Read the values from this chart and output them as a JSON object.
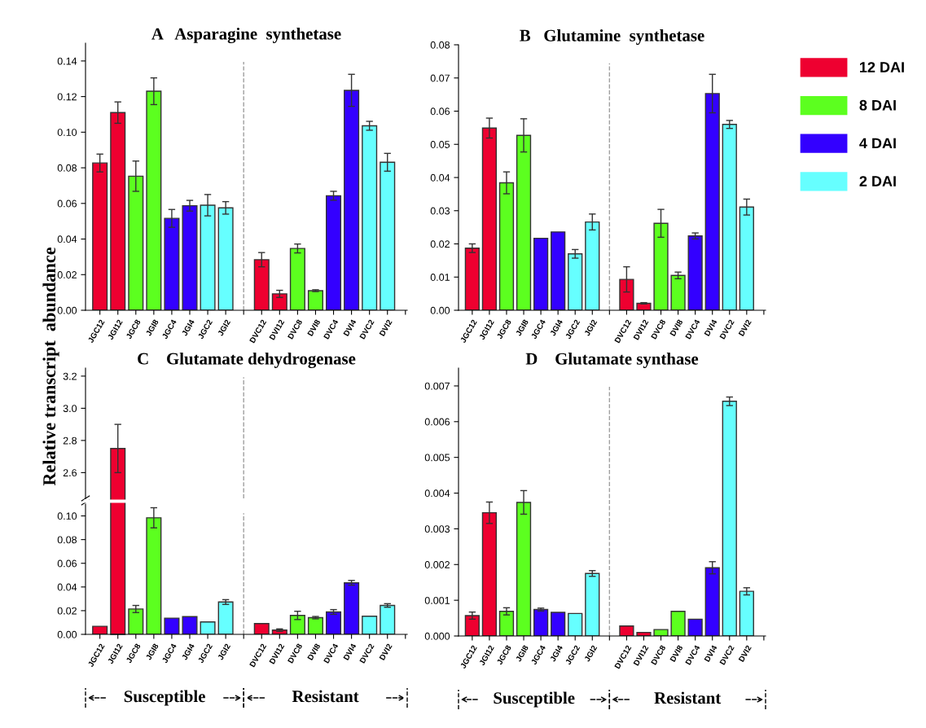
{
  "chart_data": [
    {
      "type": "bar",
      "title": "A   Asparagine  synthetase",
      "categories": [
        "JGC12",
        "JGI12",
        "JGC8",
        "JGI8",
        "JGC4",
        "JGI4",
        "JGC2",
        "JGI2",
        null,
        "DVC12",
        "DVI12",
        "DVC8",
        "DVI8",
        "DVC4",
        "DVI4",
        "DVC2",
        "DVI2"
      ],
      "series": [
        {
          "color": "#ee0030",
          "values": [
            0.0827,
            0.111,
            null,
            null,
            null,
            null,
            null,
            null,
            null,
            0.0284,
            0.0092,
            null,
            null,
            null,
            null,
            null,
            null
          ],
          "errors": [
            0.005,
            0.006,
            null,
            null,
            null,
            null,
            null,
            null,
            null,
            0.004,
            0.002,
            null,
            null,
            null,
            null,
            null,
            null
          ]
        },
        {
          "color": "#5cff1f",
          "values": [
            null,
            null,
            0.0753,
            0.123,
            null,
            null,
            null,
            null,
            null,
            null,
            null,
            0.0347,
            0.011,
            null,
            null,
            null,
            null
          ],
          "errors": [
            null,
            null,
            0.0085,
            0.0075,
            null,
            null,
            null,
            null,
            null,
            null,
            null,
            0.0025,
            0.0005,
            null,
            null,
            null,
            null
          ]
        },
        {
          "color": "#3300ff",
          "values": [
            null,
            null,
            null,
            null,
            0.0516,
            0.0587,
            null,
            null,
            null,
            null,
            null,
            null,
            null,
            0.0643,
            0.1235,
            null,
            null
          ],
          "errors": [
            null,
            null,
            null,
            null,
            0.005,
            0.003,
            null,
            null,
            null,
            null,
            null,
            null,
            null,
            0.0025,
            0.009,
            null,
            null
          ]
        },
        {
          "color": "#66ffff",
          "values": [
            null,
            null,
            null,
            null,
            null,
            null,
            0.059,
            0.0575,
            null,
            null,
            null,
            null,
            null,
            null,
            null,
            0.1036,
            0.0831
          ],
          "errors": [
            null,
            null,
            null,
            null,
            null,
            null,
            0.006,
            0.0035,
            null,
            null,
            null,
            null,
            null,
            null,
            null,
            0.0025,
            0.005
          ]
        }
      ],
      "ylim": [
        0,
        0.15
      ],
      "yticks": [
        {
          "value": 0,
          "label": "0.00"
        },
        0.02,
        0.04,
        0.06,
        0.08,
        {
          "value": 0.1,
          "label": "0.10"
        },
        0.12,
        0.14
      ]
    },
    {
      "type": "bar",
      "title": "B   Glutamine  synthetase",
      "legend": "right",
      "categories": [
        "JGC12",
        "JGI12",
        "JGC8",
        "JGI8",
        "JGC4",
        "JGI4",
        "JGC2",
        "JGI2",
        null,
        "DVC12",
        "DVI12",
        "DVC8",
        "DVI8",
        "DVC4",
        "DVI4",
        "DVC2",
        "DVI2"
      ],
      "series": [
        {
          "name": "12 DAI",
          "color": "#ee0030",
          "values": [
            0.0187,
            0.0549,
            null,
            null,
            null,
            null,
            null,
            null,
            null,
            0.0093,
            0.0021,
            null,
            null,
            null,
            null,
            null,
            null
          ],
          "errors": [
            0.0013,
            0.003,
            null,
            null,
            null,
            null,
            null,
            null,
            null,
            0.0038,
            0.0002,
            null,
            null,
            null,
            null,
            null,
            null
          ]
        },
        {
          "name": "8 DAI",
          "color": "#5cff1f",
          "values": [
            null,
            null,
            0.0384,
            0.0527,
            null,
            null,
            null,
            null,
            null,
            null,
            null,
            0.0262,
            0.0105,
            null,
            null,
            null,
            null
          ],
          "errors": [
            null,
            null,
            0.0033,
            0.005,
            null,
            null,
            null,
            null,
            null,
            null,
            null,
            0.0042,
            0.001,
            null,
            null,
            null,
            null
          ]
        },
        {
          "name": "4 DAI",
          "color": "#3300ff",
          "values": [
            null,
            null,
            null,
            null,
            0.0217,
            0.0236,
            null,
            null,
            null,
            null,
            null,
            null,
            null,
            0.0224,
            0.0653,
            null,
            null
          ],
          "errors": [
            null,
            null,
            null,
            null,
            null,
            null,
            null,
            null,
            null,
            null,
            null,
            null,
            null,
            0.0009,
            0.0058,
            null,
            null
          ]
        },
        {
          "name": "2 DAI",
          "color": "#66ffff",
          "values": [
            null,
            null,
            null,
            null,
            null,
            null,
            0.017,
            0.0266,
            null,
            null,
            null,
            null,
            null,
            null,
            null,
            0.056,
            0.0311
          ],
          "errors": [
            null,
            null,
            null,
            null,
            null,
            null,
            0.0013,
            0.0024,
            null,
            null,
            null,
            null,
            null,
            null,
            null,
            0.0012,
            0.0024
          ]
        }
      ],
      "ylim": [
        0,
        0.08
      ],
      "yticks": [
        {
          "value": 0,
          "label": "0.00"
        },
        0.01,
        0.02,
        0.03,
        0.04,
        0.05,
        0.06,
        0.07,
        0.08
      ]
    },
    {
      "type": "bar",
      "title": "C    Glutamate dehydrogenase",
      "tick_labels": "y",
      "series": [
        {
          "color": "#ee0030",
          "values": [
            null,
            2.75,
            null,
            null,
            null,
            null,
            null,
            null,
            null,
            null,
            null,
            null,
            null,
            null,
            null,
            null,
            null
          ],
          "errors": [
            null,
            0.15,
            null,
            null,
            null,
            null,
            null,
            null,
            null,
            null,
            null,
            null,
            null,
            null,
            null,
            null,
            null
          ]
        }
      ],
      "ylim": [
        2.44,
        3.25
      ],
      "yticks": [
        2.6,
        2.8,
        {
          "value": 3.0,
          "label": "3.0"
        },
        3.2
      ]
    },
    {
      "type": "bar",
      "ylabel": "Relative transcript  abundance",
      "categories": [
        "JGC12",
        "JGI12",
        "JGC8",
        "JGI8",
        "JGC4",
        "JGI4",
        "JGC2",
        "JGI2",
        null,
        "DVC12",
        "DVI12",
        "DVC8",
        "DVI8",
        "DVC4",
        "DVI4",
        "DVC2",
        "DVI2"
      ],
      "series": [
        {
          "color": "#ee0030",
          "values": [
            0.0068,
            null,
            null,
            null,
            null,
            null,
            null,
            null,
            null,
            0.0091,
            0.0036,
            null,
            null,
            null,
            null,
            null,
            null
          ],
          "errors": [
            null,
            null,
            null,
            null,
            null,
            null,
            null,
            null,
            null,
            null,
            0.001,
            null,
            null,
            null,
            null,
            null,
            null
          ]
        },
        {
          "color": "#5cff1f",
          "values": [
            null,
            null,
            0.0214,
            0.0984,
            null,
            null,
            null,
            null,
            null,
            null,
            null,
            0.016,
            0.0141,
            null,
            null,
            null,
            null
          ],
          "errors": [
            null,
            null,
            0.003,
            0.0085,
            null,
            null,
            null,
            null,
            null,
            null,
            null,
            0.0035,
            0.001,
            null,
            null,
            null,
            null
          ]
        },
        {
          "color": "#3300ff",
          "values": [
            null,
            null,
            null,
            null,
            0.0137,
            0.015,
            null,
            null,
            null,
            null,
            null,
            null,
            null,
            0.0189,
            0.0435,
            null,
            null
          ],
          "errors": [
            null,
            null,
            null,
            null,
            null,
            null,
            null,
            null,
            null,
            null,
            null,
            null,
            null,
            0.002,
            0.002,
            null,
            null
          ]
        },
        {
          "color": "#66ffff",
          "values": [
            null,
            null,
            null,
            null,
            null,
            null,
            0.0105,
            0.0273,
            null,
            null,
            null,
            null,
            null,
            null,
            null,
            0.0153,
            0.0244
          ],
          "errors": [
            null,
            null,
            null,
            null,
            null,
            null,
            null,
            0.002,
            null,
            null,
            null,
            null,
            null,
            null,
            null,
            null,
            0.0015
          ]
        }
      ],
      "ylim": [
        0,
        0.11
      ],
      "yticks": [
        {
          "value": 0,
          "label": "0.00"
        },
        0.02,
        0.04,
        0.06,
        0.08,
        {
          "value": 0.1,
          "label": "0.10"
        }
      ],
      "annotations": [
        "Susceptible",
        "Resistant"
      ]
    },
    {
      "type": "bar",
      "title": "D    Glutamate synthase",
      "categories": [
        "JGC12",
        "JGI12",
        "JGC8",
        "JGI8",
        "JGC4",
        "JGI4",
        "JGC2",
        "JGI2",
        null,
        "DVC12",
        "DVI12",
        "DVC8",
        "DVI8",
        "DVC4",
        "DVI4",
        "DVC2",
        "DVI2"
      ],
      "series": [
        {
          "color": "#ee0030",
          "values": [
            0.00057,
            0.00345,
            null,
            null,
            null,
            null,
            null,
            null,
            null,
            0.00028,
            0.0001,
            null,
            null,
            null,
            null,
            null,
            null
          ],
          "errors": [
            0.0001,
            0.0003,
            null,
            null,
            null,
            null,
            null,
            null,
            null,
            null,
            null,
            null,
            null,
            null,
            null,
            null,
            null
          ]
        },
        {
          "color": "#5cff1f",
          "values": [
            null,
            null,
            0.00069,
            0.00374,
            null,
            null,
            null,
            null,
            null,
            null,
            null,
            0.00018,
            0.00069,
            null,
            null,
            null,
            null
          ],
          "errors": [
            null,
            null,
            0.0001,
            0.00033,
            null,
            null,
            null,
            null,
            null,
            null,
            null,
            null,
            null,
            null,
            null,
            null,
            null
          ]
        },
        {
          "color": "#3300ff",
          "values": [
            null,
            null,
            null,
            null,
            0.00074,
            0.00066,
            null,
            null,
            null,
            null,
            null,
            null,
            null,
            0.00047,
            0.00191,
            null,
            null
          ],
          "errors": [
            null,
            null,
            null,
            null,
            4e-05,
            null,
            null,
            null,
            null,
            null,
            null,
            null,
            null,
            null,
            0.00017,
            null,
            null
          ]
        },
        {
          "color": "#66ffff",
          "values": [
            null,
            null,
            null,
            null,
            null,
            null,
            0.00063,
            0.00175,
            null,
            null,
            null,
            null,
            null,
            null,
            null,
            0.00657,
            0.00125
          ],
          "errors": [
            null,
            null,
            null,
            null,
            null,
            null,
            null,
            8e-05,
            null,
            null,
            null,
            null,
            null,
            null,
            null,
            0.00012,
            0.0001
          ]
        }
      ],
      "ylim": [
        0,
        0.0075
      ],
      "yticks": [
        {
          "value": 0,
          "label": "0.000"
        },
        0.001,
        0.002,
        0.003,
        0.004,
        0.005,
        0.006,
        0.007
      ],
      "annotations": [
        "Susceptible",
        "Resistant"
      ]
    }
  ]
}
